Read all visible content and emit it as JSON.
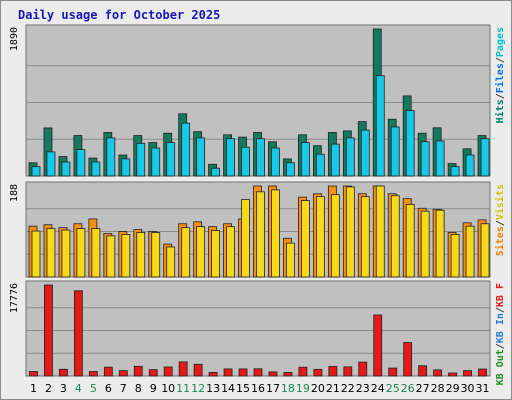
{
  "chart_data": {
    "type": "bar",
    "title": "Daily usage for October 2025",
    "days": [
      "1",
      "2",
      "3",
      "4",
      "5",
      "6",
      "7",
      "8",
      "9",
      "10",
      "11",
      "12",
      "13",
      "14",
      "15",
      "16",
      "17",
      "18",
      "19",
      "20",
      "21",
      "22",
      "23",
      "24",
      "25",
      "26",
      "27",
      "28",
      "29",
      "30",
      "31"
    ],
    "weekend_days": [
      "4",
      "5",
      "11",
      "12",
      "18",
      "19",
      "25",
      "26"
    ],
    "panels": [
      {
        "id": "traffic",
        "ymax": 1890,
        "ymax_label": "1890",
        "legend": [
          {
            "text": "Pages",
            "color": "#00c0c8"
          },
          {
            "text": "/",
            "color": "#404040"
          },
          {
            "text": "Files",
            "color": "#0070e0"
          },
          {
            "text": "/",
            "color": "#404040"
          },
          {
            "text": "Hits",
            "color": "#00806a"
          }
        ],
        "series": [
          {
            "name": "Hits",
            "color": "#157a5c",
            "values": [
              170,
              618,
              250,
              520,
              230,
              560,
              270,
              520,
              430,
              550,
              800,
              570,
              150,
              530,
              500,
              560,
              440,
              220,
              530,
              390,
              560,
              580,
              700,
              1890,
              730,
              1030,
              550,
              620,
              160,
              350,
              520
            ]
          },
          {
            "name": "Files",
            "color": "#18c8e8",
            "values": [
              120,
              310,
              180,
              340,
              180,
              490,
              220,
              420,
              360,
              430,
              680,
              490,
              100,
              480,
              370,
              480,
              360,
              170,
              430,
              280,
              410,
              490,
              590,
              1290,
              630,
              840,
              440,
              450,
              120,
              270,
              480
            ]
          }
        ]
      },
      {
        "id": "visitors",
        "ymax": 188,
        "ymax_label": "188",
        "legend": [
          {
            "text": "Visits",
            "color": "#d8c000"
          },
          {
            "text": "/",
            "color": "#404040"
          },
          {
            "text": "Sites",
            "color": "#ff8000"
          }
        ],
        "series": [
          {
            "name": "Sites",
            "color": "#f59015",
            "values": [
              105,
              108,
              102,
              110,
              120,
              90,
              94,
              98,
              94,
              68,
              110,
              114,
              104,
              110,
              120,
              188,
              188,
              80,
              165,
              172,
              188,
              188,
              172,
              188,
              172,
              162,
              142,
              140,
              92,
              112,
              118
            ]
          },
          {
            "name": "Visits",
            "color": "#f8d81a",
            "values": [
              95,
              100,
              97,
              100,
              100,
              85,
              88,
              92,
              92,
              62,
              102,
              104,
              96,
              104,
              160,
              176,
              180,
              70,
              158,
              166,
              170,
              186,
              166,
              188,
              168,
              150,
              136,
              138,
              88,
              105,
              110
            ]
          }
        ]
      },
      {
        "id": "kbytes",
        "ymax": 17776,
        "ymax_label": "17776",
        "legend": [
          {
            "text": "KB F",
            "color": "#e02020"
          },
          {
            "text": "/",
            "color": "#404040"
          },
          {
            "text": "KB In",
            "color": "#2a7ad0"
          },
          {
            "text": "/",
            "color": "#404040"
          },
          {
            "text": "KB Out",
            "color": "#209020"
          }
        ],
        "series": [
          {
            "name": "KB F",
            "color": "#e41a1a",
            "values": [
              880,
              17776,
              1310,
              16650,
              880,
              1730,
              1050,
              1890,
              1240,
              1760,
              2760,
              2290,
              710,
              1380,
              1380,
              1410,
              800,
              700,
              1710,
              1300,
              1860,
              1780,
              2720,
              11920,
              1550,
              6530,
              2010,
              1200,
              580,
              1050,
              1360
            ]
          }
        ]
      }
    ]
  }
}
